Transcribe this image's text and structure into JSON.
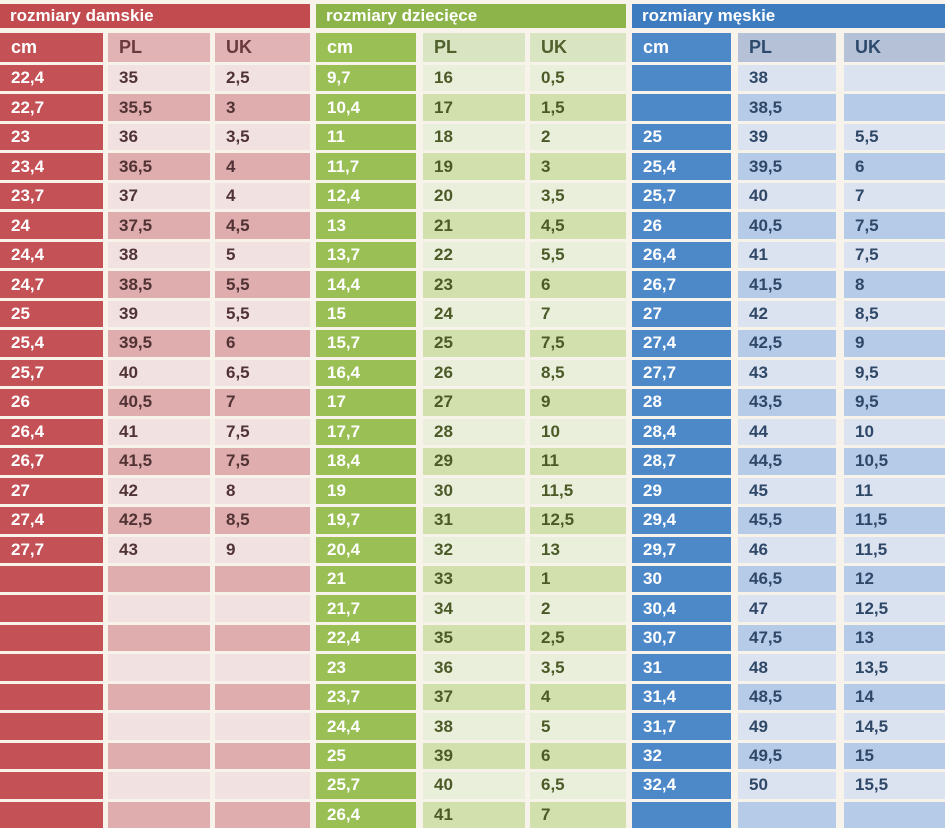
{
  "page_bg": "#f8f3ea",
  "chart_data": {
    "type": "table",
    "description": "Shoe size conversion charts (foot length cm to PL and UK sizes) for women, children and men",
    "tables": [
      {
        "title": "rozmiary damskie",
        "columns": [
          "cm",
          "PL",
          "UK"
        ],
        "colors": {
          "title_bg": "#c14b4f",
          "cm_bg": "#c35156",
          "head_bg": "#e2b3b4",
          "head_text": "#6a393b",
          "row_light": "#f1e1e1",
          "row_dark": "#dfadad",
          "text": "#513335"
        },
        "rows": [
          [
            "22,4",
            "35",
            "2,5"
          ],
          [
            "22,7",
            "35,5",
            "3"
          ],
          [
            "23",
            "36",
            "3,5"
          ],
          [
            "23,4",
            "36,5",
            "4"
          ],
          [
            "23,7",
            "37",
            "4"
          ],
          [
            "24",
            "37,5",
            "4,5"
          ],
          [
            "24,4",
            "38",
            "5"
          ],
          [
            "24,7",
            "38,5",
            "5,5"
          ],
          [
            "25",
            "39",
            "5,5"
          ],
          [
            "25,4",
            "39,5",
            "6"
          ],
          [
            "25,7",
            "40",
            "6,5"
          ],
          [
            "26",
            "40,5",
            "7"
          ],
          [
            "26,4",
            "41",
            "7,5"
          ],
          [
            "26,7",
            "41,5",
            "7,5"
          ],
          [
            "27",
            "42",
            "8"
          ],
          [
            "27,4",
            "42,5",
            "8,5"
          ],
          [
            "27,7",
            "43",
            "9"
          ],
          [
            "",
            "",
            ""
          ],
          [
            "",
            "",
            ""
          ],
          [
            "",
            "",
            ""
          ],
          [
            "",
            "",
            ""
          ],
          [
            "",
            "",
            ""
          ],
          [
            "",
            "",
            ""
          ],
          [
            "",
            "",
            ""
          ],
          [
            "",
            "",
            ""
          ],
          [
            "",
            "",
            ""
          ]
        ]
      },
      {
        "title": "rozmiary dziecięce",
        "columns": [
          "cm",
          "PL",
          "UK"
        ],
        "colors": {
          "title_bg": "#8cb44a",
          "cm_bg": "#9abf55",
          "head_bg": "#d8e4c2",
          "head_text": "#50602c",
          "row_light": "#e9efdb",
          "row_dark": "#d2e0ae",
          "text": "#4b5a26"
        },
        "rows": [
          [
            "9,7",
            "16",
            "0,5"
          ],
          [
            "10,4",
            "17",
            "1,5"
          ],
          [
            "11",
            "18",
            "2"
          ],
          [
            "11,7",
            "19",
            "3"
          ],
          [
            "12,4",
            "20",
            "3,5"
          ],
          [
            "13",
            "21",
            "4,5"
          ],
          [
            "13,7",
            "22",
            "5,5"
          ],
          [
            "14,4",
            "23",
            "6"
          ],
          [
            "15",
            "24",
            "7"
          ],
          [
            "15,7",
            "25",
            "7,5"
          ],
          [
            "16,4",
            "26",
            "8,5"
          ],
          [
            "17",
            "27",
            "9"
          ],
          [
            "17,7",
            "28",
            "10"
          ],
          [
            "18,4",
            "29",
            "11"
          ],
          [
            "19",
            "30",
            "11,5"
          ],
          [
            "19,7",
            "31",
            "12,5"
          ],
          [
            "20,4",
            "32",
            "13"
          ],
          [
            "21",
            "33",
            "1"
          ],
          [
            "21,7",
            "34",
            "2"
          ],
          [
            "22,4",
            "35",
            "2,5"
          ],
          [
            "23",
            "36",
            "3,5"
          ],
          [
            "23,7",
            "37",
            "4"
          ],
          [
            "24,4",
            "38",
            "5"
          ],
          [
            "25",
            "39",
            "6"
          ],
          [
            "25,7",
            "40",
            "6,5"
          ],
          [
            "26,4",
            "41",
            "7"
          ]
        ]
      },
      {
        "title": "rozmiary męskie",
        "columns": [
          "cm",
          "PL",
          "UK"
        ],
        "colors": {
          "title_bg": "#3d7cbf",
          "cm_bg": "#4d89c9",
          "head_bg": "#b5c1d7",
          "head_text": "#2d4a6e",
          "row_light": "#dbe3f0",
          "row_dark": "#b5cbe8",
          "text": "#304868"
        },
        "rows": [
          [
            "",
            "38",
            ""
          ],
          [
            "",
            "38,5",
            ""
          ],
          [
            "25",
            "39",
            "5,5"
          ],
          [
            "25,4",
            "39,5",
            "6"
          ],
          [
            "25,7",
            "40",
            "7"
          ],
          [
            "26",
            "40,5",
            "7,5"
          ],
          [
            "26,4",
            "41",
            "7,5"
          ],
          [
            "26,7",
            "41,5",
            "8"
          ],
          [
            "27",
            "42",
            "8,5"
          ],
          [
            "27,4",
            "42,5",
            "9"
          ],
          [
            "27,7",
            "43",
            "9,5"
          ],
          [
            "28",
            "43,5",
            "9,5"
          ],
          [
            "28,4",
            "44",
            "10"
          ],
          [
            "28,7",
            "44,5",
            "10,5"
          ],
          [
            "29",
            "45",
            "11"
          ],
          [
            "29,4",
            "45,5",
            "11,5"
          ],
          [
            "29,7",
            "46",
            "11,5"
          ],
          [
            "30",
            "46,5",
            "12"
          ],
          [
            "30,4",
            "47",
            "12,5"
          ],
          [
            "30,7",
            "47,5",
            "13"
          ],
          [
            "31",
            "48",
            "13,5"
          ],
          [
            "31,4",
            "48,5",
            "14"
          ],
          [
            "31,7",
            "49",
            "14,5"
          ],
          [
            "32",
            "49,5",
            "15"
          ],
          [
            "32,4",
            "50",
            "15,5"
          ],
          [
            "",
            "",
            ""
          ]
        ]
      }
    ]
  }
}
